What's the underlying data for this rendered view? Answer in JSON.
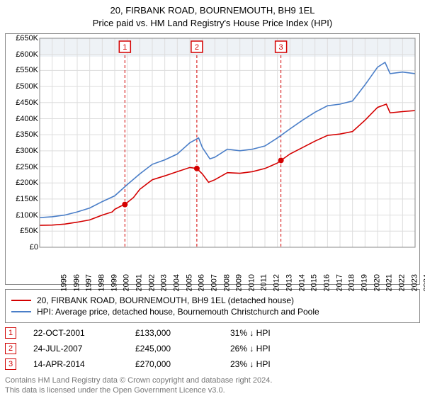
{
  "title_line1": "20, FIRBANK ROAD, BOURNEMOUTH, BH9 1EL",
  "title_line2": "Price paid vs. HM Land Registry's House Price Index (HPI)",
  "chart": {
    "type": "line",
    "ylim": [
      0,
      650000
    ],
    "ytick_step": 50000,
    "ytick_labels": [
      "£0",
      "£50K",
      "£100K",
      "£150K",
      "£200K",
      "£250K",
      "£300K",
      "£350K",
      "£400K",
      "£450K",
      "£500K",
      "£550K",
      "£600K",
      "£650K"
    ],
    "xyears": [
      1995,
      1996,
      1997,
      1998,
      1999,
      2000,
      2001,
      2002,
      2003,
      2004,
      2005,
      2006,
      2007,
      2008,
      2009,
      2010,
      2011,
      2012,
      2013,
      2014,
      2015,
      2016,
      2017,
      2018,
      2019,
      2020,
      2021,
      2022,
      2023,
      2024,
      2025
    ],
    "grid_color": "#dddddd",
    "grid_width": 1,
    "background_color": "#ffffff",
    "series": [
      {
        "name": "property",
        "color": "#d40000",
        "width": 1.6,
        "points": [
          [
            1995,
            68000
          ],
          [
            1996,
            69000
          ],
          [
            1997,
            72000
          ],
          [
            1998,
            78000
          ],
          [
            1999,
            85000
          ],
          [
            2000,
            100000
          ],
          [
            2000.8,
            110000
          ],
          [
            2001.0,
            118000
          ],
          [
            2001.5,
            128000
          ],
          [
            2001.81,
            133000
          ],
          [
            2002.5,
            155000
          ],
          [
            2003,
            180000
          ],
          [
            2004,
            210000
          ],
          [
            2005,
            222000
          ],
          [
            2006,
            235000
          ],
          [
            2007,
            248000
          ],
          [
            2007.56,
            245000
          ],
          [
            2008,
            228000
          ],
          [
            2008.5,
            202000
          ],
          [
            2009,
            210000
          ],
          [
            2010,
            232000
          ],
          [
            2011,
            230000
          ],
          [
            2012,
            235000
          ],
          [
            2013,
            245000
          ],
          [
            2014,
            262000
          ],
          [
            2014.28,
            270000
          ],
          [
            2015,
            290000
          ],
          [
            2016,
            310000
          ],
          [
            2017,
            330000
          ],
          [
            2018,
            348000
          ],
          [
            2019,
            352000
          ],
          [
            2020,
            360000
          ],
          [
            2021,
            395000
          ],
          [
            2022,
            435000
          ],
          [
            2022.7,
            445000
          ],
          [
            2023,
            418000
          ],
          [
            2024,
            422000
          ],
          [
            2025,
            425000
          ]
        ]
      },
      {
        "name": "hpi",
        "color": "#4a7ec8",
        "width": 1.6,
        "points": [
          [
            1995,
            92000
          ],
          [
            1996,
            95000
          ],
          [
            1997,
            100000
          ],
          [
            1998,
            110000
          ],
          [
            1999,
            122000
          ],
          [
            2000,
            142000
          ],
          [
            2001,
            160000
          ],
          [
            2002,
            195000
          ],
          [
            2003,
            228000
          ],
          [
            2004,
            258000
          ],
          [
            2005,
            272000
          ],
          [
            2006,
            290000
          ],
          [
            2007,
            325000
          ],
          [
            2007.7,
            340000
          ],
          [
            2008,
            310000
          ],
          [
            2008.6,
            275000
          ],
          [
            2009,
            280000
          ],
          [
            2010,
            305000
          ],
          [
            2011,
            300000
          ],
          [
            2012,
            305000
          ],
          [
            2013,
            315000
          ],
          [
            2014,
            340000
          ],
          [
            2015,
            368000
          ],
          [
            2016,
            395000
          ],
          [
            2017,
            420000
          ],
          [
            2018,
            440000
          ],
          [
            2019,
            445000
          ],
          [
            2020,
            455000
          ],
          [
            2021,
            505000
          ],
          [
            2022,
            560000
          ],
          [
            2022.6,
            575000
          ],
          [
            2023,
            540000
          ],
          [
            2024,
            545000
          ],
          [
            2025,
            540000
          ]
        ]
      }
    ],
    "event_markers": [
      {
        "n": "1",
        "year": 2001.81,
        "price": 133000,
        "marker_color": "#d40000"
      },
      {
        "n": "2",
        "year": 2007.56,
        "price": 245000,
        "marker_color": "#d40000"
      },
      {
        "n": "3",
        "year": 2014.28,
        "price": 270000,
        "marker_color": "#d40000"
      }
    ],
    "event_line_color": "#d40000",
    "event_line_dash": "4,3",
    "badge_band_color": "#eef2f6"
  },
  "legend": [
    {
      "color": "#d40000",
      "label": "20, FIRBANK ROAD, BOURNEMOUTH, BH9 1EL (detached house)"
    },
    {
      "color": "#4a7ec8",
      "label": "HPI: Average price, detached house, Bournemouth Christchurch and Poole"
    }
  ],
  "events": [
    {
      "n": "1",
      "date": "22-OCT-2001",
      "price": "£133,000",
      "delta": "31% ↓ HPI"
    },
    {
      "n": "2",
      "date": "24-JUL-2007",
      "price": "£245,000",
      "delta": "26% ↓ HPI"
    },
    {
      "n": "3",
      "date": "14-APR-2014",
      "price": "£270,000",
      "delta": "23% ↓ HPI"
    }
  ],
  "footer_line1": "Contains HM Land Registry data © Crown copyright and database right 2024.",
  "footer_line2": "This data is licensed under the Open Government Licence v3.0."
}
